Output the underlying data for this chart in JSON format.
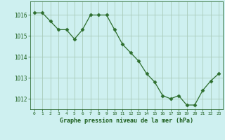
{
  "x": [
    0,
    1,
    2,
    3,
    4,
    5,
    6,
    7,
    8,
    9,
    10,
    11,
    12,
    13,
    14,
    15,
    16,
    17,
    18,
    19,
    20,
    21,
    22,
    23
  ],
  "y": [
    1016.1,
    1016.1,
    1015.7,
    1015.3,
    1015.3,
    1014.85,
    1015.3,
    1016.0,
    1016.0,
    1016.0,
    1015.3,
    1014.6,
    1014.2,
    1013.8,
    1013.2,
    1012.8,
    1012.15,
    1012.0,
    1012.15,
    1011.7,
    1011.7,
    1012.4,
    1012.85,
    1013.2
  ],
  "line_color": "#2d6e2d",
  "marker": "D",
  "marker_size": 2.5,
  "background_color": "#cef0f0",
  "grid_color": "#aaccbb",
  "axis_label_color": "#1a5c1a",
  "tick_label_color": "#1a5c1a",
  "xlabel": "Graphe pression niveau de la mer (hPa)",
  "ylim": [
    1011.5,
    1016.65
  ],
  "yticks": [
    1012,
    1013,
    1014,
    1015,
    1016
  ],
  "xticks": [
    0,
    1,
    2,
    3,
    4,
    5,
    6,
    7,
    8,
    9,
    10,
    11,
    12,
    13,
    14,
    15,
    16,
    17,
    18,
    19,
    20,
    21,
    22,
    23
  ],
  "xtick_labels": [
    "0",
    "1",
    "2",
    "3",
    "4",
    "5",
    "6",
    "7",
    "8",
    "9",
    "10",
    "11",
    "12",
    "13",
    "14",
    "15",
    "16",
    "17",
    "18",
    "19",
    "20",
    "21",
    "22",
    "23"
  ],
  "fig_width": 3.2,
  "fig_height": 2.0,
  "dpi": 100
}
